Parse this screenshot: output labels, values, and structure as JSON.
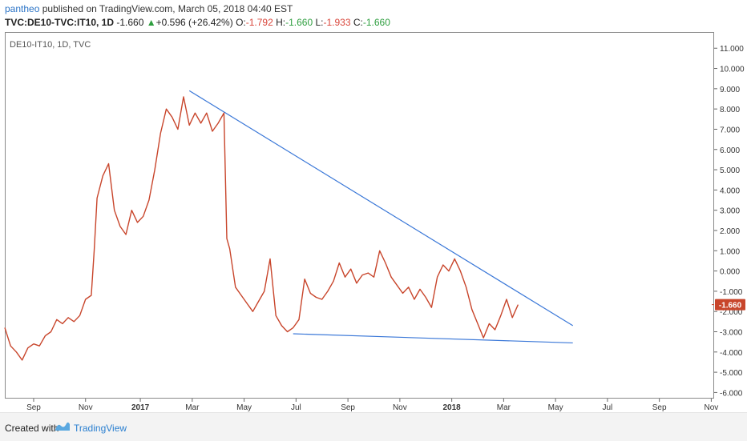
{
  "header": {
    "author": "pantheo",
    "published_text": "published on TradingView.com, March 05, 2018 04:40 EST",
    "symbol": "TVC:DE10-TVC:IT10, 1D",
    "last": "-1.660",
    "change": "+0.596 (+26.42%)",
    "o_label": "O:",
    "o_value": "-1.792",
    "h_label": "H:",
    "h_value": "-1.660",
    "l_label": "L:",
    "l_value": "-1.933",
    "c_label": "C:",
    "c_value": "-1.660"
  },
  "chart_inner_label": "DE10-IT10, 1D, TVC",
  "last_price_badge": "-1.660",
  "footer": {
    "created_with": "Created with",
    "brand": "TradingView"
  },
  "colors": {
    "price_line": "#c8452b",
    "trend_line": "#3b78d8",
    "badge": "#c8452b",
    "brand": "#2a7fd0"
  },
  "chart_data": {
    "type": "line",
    "y_ticks": [
      "11.000",
      "10.000",
      "9.000",
      "8.000",
      "7.000",
      "6.000",
      "5.000",
      "4.000",
      "3.000",
      "2.000",
      "1.000",
      "0.000",
      "-1.000",
      "-2.000",
      "-3.000",
      "-4.000",
      "-5.000",
      "-6.000"
    ],
    "ylim": [
      -6.3,
      11.8
    ],
    "xlim": [
      0,
      123
    ],
    "x_ticks": [
      {
        "x": 5,
        "label": "Sep",
        "bold": false
      },
      {
        "x": 14,
        "label": "Nov",
        "bold": false
      },
      {
        "x": 23.5,
        "label": "2017",
        "bold": true
      },
      {
        "x": 32.5,
        "label": "Mar",
        "bold": false
      },
      {
        "x": 41.5,
        "label": "May",
        "bold": false
      },
      {
        "x": 50.5,
        "label": "Jul",
        "bold": false
      },
      {
        "x": 59.5,
        "label": "Sep",
        "bold": false
      },
      {
        "x": 68.5,
        "label": "Nov",
        "bold": false
      },
      {
        "x": 77.5,
        "label": "2018",
        "bold": true
      },
      {
        "x": 86.5,
        "label": "Mar",
        "bold": false
      },
      {
        "x": 95.5,
        "label": "May",
        "bold": false
      },
      {
        "x": 104.5,
        "label": "Jul",
        "bold": false
      },
      {
        "x": 113.5,
        "label": "Sep",
        "bold": false
      },
      {
        "x": 122.5,
        "label": "Nov",
        "bold": false
      }
    ],
    "series": [
      {
        "values": [
          [
            0,
            -2.8
          ],
          [
            1,
            -3.7
          ],
          [
            2,
            -4.0
          ],
          [
            3,
            -4.4
          ],
          [
            4,
            -3.8
          ],
          [
            5,
            -3.6
          ],
          [
            6,
            -3.7
          ],
          [
            7,
            -3.2
          ],
          [
            8,
            -3.0
          ],
          [
            9,
            -2.4
          ],
          [
            10,
            -2.6
          ],
          [
            11,
            -2.3
          ],
          [
            12,
            -2.5
          ],
          [
            13,
            -2.2
          ],
          [
            14,
            -1.4
          ],
          [
            15,
            -1.2
          ],
          [
            15.5,
            1.0
          ],
          [
            16,
            3.6
          ],
          [
            17,
            4.7
          ],
          [
            18,
            5.3
          ],
          [
            19,
            3.0
          ],
          [
            20,
            2.2
          ],
          [
            21,
            1.8
          ],
          [
            22,
            3.0
          ],
          [
            23,
            2.4
          ],
          [
            24,
            2.7
          ],
          [
            25,
            3.5
          ],
          [
            26,
            5.0
          ],
          [
            27,
            6.8
          ],
          [
            28,
            8.0
          ],
          [
            29,
            7.6
          ],
          [
            30,
            7.0
          ],
          [
            31,
            8.6
          ],
          [
            32,
            7.2
          ],
          [
            33,
            7.8
          ],
          [
            34,
            7.3
          ],
          [
            35,
            7.8
          ],
          [
            36,
            6.9
          ],
          [
            37,
            7.3
          ],
          [
            38,
            7.8
          ],
          [
            38.5,
            1.6
          ],
          [
            39,
            1.1
          ],
          [
            40,
            -0.8
          ],
          [
            41,
            -1.2
          ],
          [
            42,
            -1.6
          ],
          [
            43,
            -2.0
          ],
          [
            44,
            -1.5
          ],
          [
            45,
            -1.0
          ],
          [
            46,
            0.6
          ],
          [
            47,
            -2.2
          ],
          [
            48,
            -2.7
          ],
          [
            49,
            -3.0
          ],
          [
            50,
            -2.8
          ],
          [
            51,
            -2.4
          ],
          [
            52,
            -0.4
          ],
          [
            53,
            -1.1
          ],
          [
            54,
            -1.3
          ],
          [
            55,
            -1.4
          ],
          [
            56,
            -1.0
          ],
          [
            57,
            -0.5
          ],
          [
            58,
            0.4
          ],
          [
            59,
            -0.3
          ],
          [
            60,
            0.1
          ],
          [
            61,
            -0.6
          ],
          [
            62,
            -0.2
          ],
          [
            63,
            -0.1
          ],
          [
            64,
            -0.3
          ],
          [
            65,
            1.0
          ],
          [
            66,
            0.4
          ],
          [
            67,
            -0.3
          ],
          [
            68,
            -0.7
          ],
          [
            69,
            -1.1
          ],
          [
            70,
            -0.8
          ],
          [
            71,
            -1.4
          ],
          [
            72,
            -0.9
          ],
          [
            73,
            -1.3
          ],
          [
            74,
            -1.8
          ],
          [
            75,
            -0.3
          ],
          [
            76,
            0.3
          ],
          [
            77,
            0.0
          ],
          [
            78,
            0.6
          ],
          [
            79,
            0.0
          ],
          [
            80,
            -0.8
          ],
          [
            81,
            -1.9
          ],
          [
            82,
            -2.6
          ],
          [
            83,
            -3.3
          ],
          [
            84,
            -2.6
          ],
          [
            85,
            -2.9
          ],
          [
            86,
            -2.2
          ],
          [
            87,
            -1.4
          ],
          [
            88,
            -2.3
          ],
          [
            89,
            -1.66
          ]
        ]
      }
    ],
    "trend_lines": [
      {
        "from": [
          32,
          8.9
        ],
        "to": [
          98.5,
          -2.7
        ]
      },
      {
        "from": [
          50,
          -3.1
        ],
        "to": [
          98.5,
          -3.55
        ]
      }
    ],
    "last_value": -1.66
  }
}
